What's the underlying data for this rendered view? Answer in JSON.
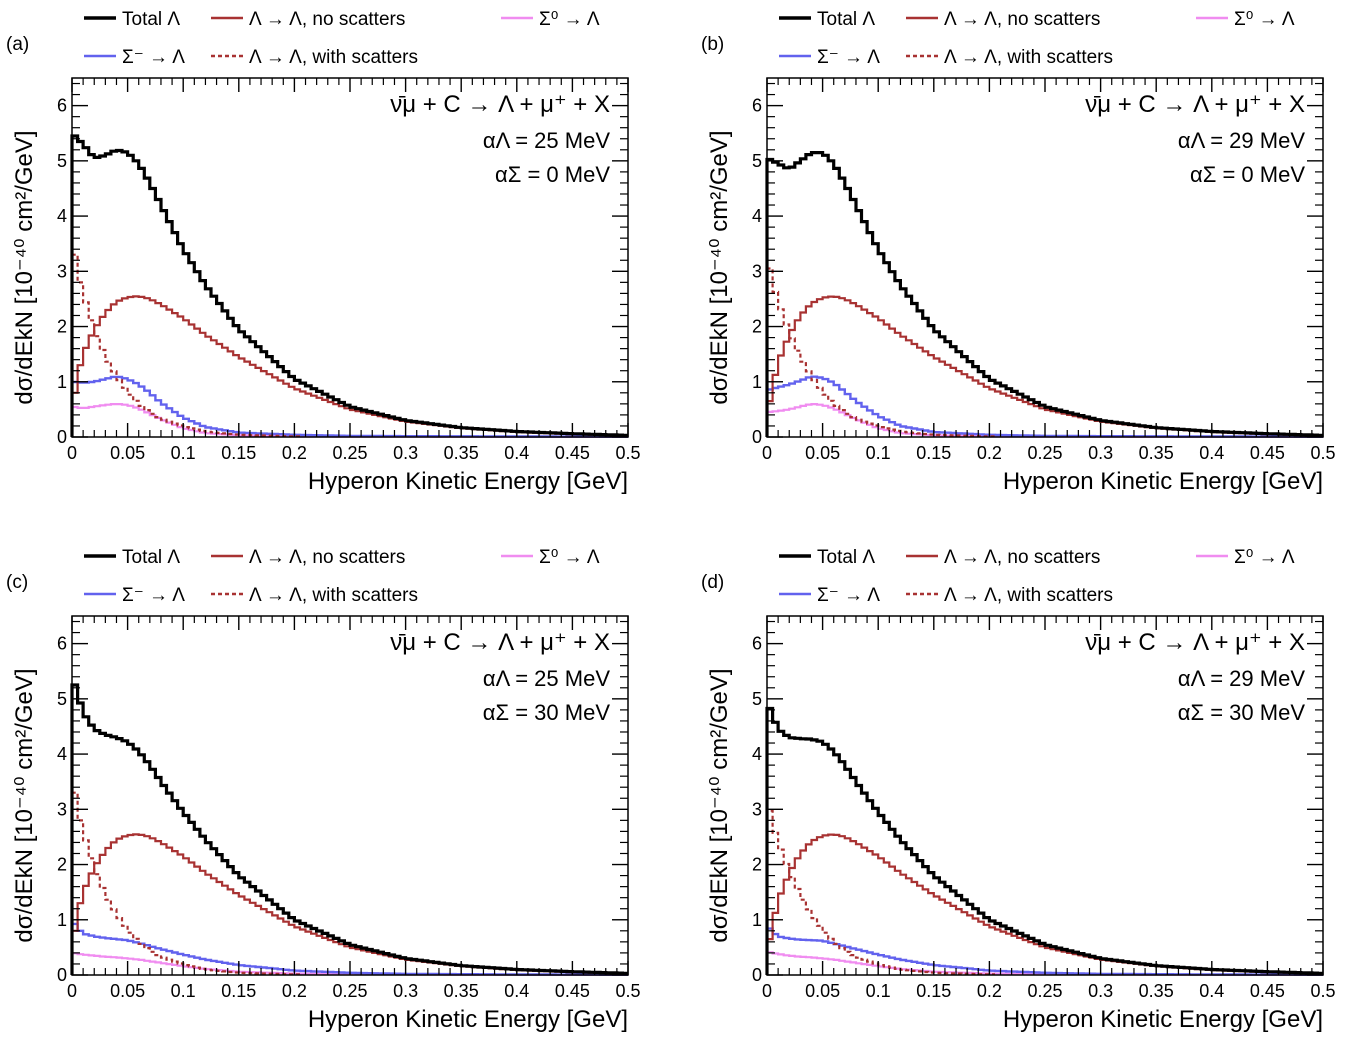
{
  "colors": {
    "total": "#000000",
    "lam_no": "#a83232",
    "lam_with": "#a83232",
    "sigma_minus": "#6262ee",
    "sigma0": "#f08cf0"
  },
  "legend": {
    "total": "Total Λ",
    "lam_no": "Λ → Λ, no scatters",
    "sigma0": "Σ⁰ → Λ",
    "sigma_minus": "Σ⁻ → Λ",
    "lam_with": "Λ → Λ, with scatters"
  },
  "chart_data": [
    {
      "type": "line",
      "panel": "(a)",
      "title": "ν̄μ + C → Λ + μ⁺ + X",
      "annotations": [
        "αΛ = 25 MeV",
        "αΣ = 0 MeV"
      ],
      "xlabel": "Hyperon Kinetic Energy   [GeV]",
      "ylabel": "dσ/dEkN   [10⁻⁴⁰ cm²/GeV]",
      "xlim": [
        0,
        0.5
      ],
      "ylim": [
        0,
        6.5
      ],
      "xticks": [
        "0",
        "0.05",
        "0.1",
        "0.15",
        "0.2",
        "0.25",
        "0.3",
        "0.35",
        "0.4",
        "0.45",
        "0.5"
      ],
      "yticks": [
        "0",
        "1",
        "2",
        "3",
        "4",
        "5",
        "6"
      ],
      "legend_position": "top",
      "series": [
        {
          "key": "total",
          "name": "Total Λ",
          "x": [
            0,
            0.01,
            0.02,
            0.03,
            0.04,
            0.05,
            0.06,
            0.07,
            0.08,
            0.09,
            0.1,
            0.12,
            0.15,
            0.2,
            0.25,
            0.3,
            0.35,
            0.4,
            0.45,
            0.5
          ],
          "y": [
            5.5,
            5.3,
            5.05,
            5.1,
            5.2,
            5.15,
            4.95,
            4.6,
            4.2,
            3.8,
            3.4,
            2.75,
            1.95,
            1.05,
            0.55,
            0.3,
            0.17,
            0.1,
            0.06,
            0.03
          ]
        },
        {
          "key": "lam_no",
          "name": "Λ → Λ, no scatters",
          "x": [
            0,
            0.005,
            0.01,
            0.02,
            0.03,
            0.04,
            0.05,
            0.06,
            0.07,
            0.08,
            0.1,
            0.12,
            0.15,
            0.2,
            0.25,
            0.3,
            0.35,
            0.4,
            0.45,
            0.5
          ],
          "y": [
            0.5,
            1.1,
            1.5,
            1.95,
            2.25,
            2.45,
            2.53,
            2.55,
            2.5,
            2.4,
            2.15,
            1.85,
            1.45,
            0.88,
            0.5,
            0.28,
            0.16,
            0.09,
            0.05,
            0.03
          ]
        },
        {
          "key": "lam_with",
          "name": "Λ → Λ, with scatters",
          "x": [
            0,
            0.005,
            0.01,
            0.02,
            0.03,
            0.04,
            0.05,
            0.06,
            0.07,
            0.08,
            0.1,
            0.12,
            0.15,
            0.2
          ],
          "y": [
            3.6,
            3.0,
            2.6,
            1.95,
            1.45,
            1.1,
            0.82,
            0.6,
            0.45,
            0.33,
            0.19,
            0.1,
            0.04,
            0.01
          ]
        },
        {
          "key": "sigma_minus",
          "name": "Σ⁻ → Λ",
          "x": [
            0,
            0.01,
            0.02,
            0.03,
            0.04,
            0.05,
            0.06,
            0.07,
            0.08,
            0.1,
            0.12,
            0.15,
            0.2,
            0.25,
            0.3,
            0.4,
            0.5
          ],
          "y": [
            1.0,
            0.98,
            1.0,
            1.05,
            1.1,
            1.05,
            0.95,
            0.8,
            0.62,
            0.35,
            0.18,
            0.08,
            0.04,
            0.02,
            0.015,
            0.01,
            0.005
          ]
        },
        {
          "key": "sigma0",
          "name": "Σ⁰ → Λ",
          "x": [
            0,
            0.01,
            0.02,
            0.03,
            0.04,
            0.05,
            0.06,
            0.07,
            0.08,
            0.1,
            0.12,
            0.15,
            0.2,
            0.3,
            0.4,
            0.5
          ],
          "y": [
            0.55,
            0.52,
            0.55,
            0.58,
            0.6,
            0.58,
            0.52,
            0.42,
            0.32,
            0.16,
            0.07,
            0.03,
            0.01,
            0.005,
            0.003,
            0.002
          ]
        }
      ]
    },
    {
      "type": "line",
      "panel": "(b)",
      "title": "ν̄μ + C → Λ + μ⁺ + X",
      "annotations": [
        "αΛ = 29 MeV",
        "αΣ = 0 MeV"
      ],
      "xlabel": "Hyperon Kinetic Energy   [GeV]",
      "ylabel": "dσ/dEkN   [10⁻⁴⁰ cm²/GeV]",
      "xlim": [
        0,
        0.5
      ],
      "ylim": [
        0,
        6.5
      ],
      "xticks": [
        "0",
        "0.05",
        "0.1",
        "0.15",
        "0.2",
        "0.25",
        "0.3",
        "0.35",
        "0.4",
        "0.45",
        "0.5"
      ],
      "yticks": [
        "0",
        "1",
        "2",
        "3",
        "4",
        "5",
        "6"
      ],
      "legend_position": "top",
      "series": [
        {
          "key": "total",
          "name": "Total Λ",
          "x": [
            0,
            0.01,
            0.02,
            0.03,
            0.04,
            0.05,
            0.06,
            0.07,
            0.08,
            0.09,
            0.1,
            0.12,
            0.15,
            0.2,
            0.25,
            0.3,
            0.35,
            0.4,
            0.45,
            0.5
          ],
          "y": [
            5.05,
            4.95,
            4.85,
            5.0,
            5.15,
            5.15,
            4.95,
            4.6,
            4.2,
            3.8,
            3.4,
            2.75,
            1.95,
            1.05,
            0.55,
            0.3,
            0.17,
            0.1,
            0.06,
            0.03
          ]
        },
        {
          "key": "lam_no",
          "name": "Λ → Λ, no scatters",
          "x": [
            0,
            0.005,
            0.01,
            0.02,
            0.03,
            0.04,
            0.05,
            0.06,
            0.07,
            0.08,
            0.1,
            0.12,
            0.15,
            0.2,
            0.25,
            0.3,
            0.35,
            0.4,
            0.45,
            0.5
          ],
          "y": [
            0.4,
            0.9,
            1.35,
            1.85,
            2.2,
            2.42,
            2.52,
            2.55,
            2.5,
            2.4,
            2.15,
            1.85,
            1.45,
            0.88,
            0.5,
            0.28,
            0.16,
            0.09,
            0.05,
            0.03
          ]
        },
        {
          "key": "lam_with",
          "name": "Λ → Λ, with scatters",
          "x": [
            0,
            0.005,
            0.01,
            0.02,
            0.03,
            0.04,
            0.05,
            0.06,
            0.07,
            0.08,
            0.1,
            0.12,
            0.15,
            0.2
          ],
          "y": [
            3.3,
            2.8,
            2.45,
            1.9,
            1.45,
            1.1,
            0.82,
            0.6,
            0.45,
            0.33,
            0.19,
            0.1,
            0.04,
            0.01
          ]
        },
        {
          "key": "sigma_minus",
          "name": "Σ⁻ → Λ",
          "x": [
            0,
            0.01,
            0.02,
            0.03,
            0.04,
            0.05,
            0.06,
            0.07,
            0.08,
            0.1,
            0.12,
            0.15,
            0.2,
            0.25,
            0.3,
            0.4,
            0.5
          ],
          "y": [
            0.85,
            0.9,
            0.95,
            1.02,
            1.1,
            1.07,
            0.98,
            0.82,
            0.65,
            0.38,
            0.2,
            0.09,
            0.04,
            0.02,
            0.015,
            0.01,
            0.005
          ]
        },
        {
          "key": "sigma0",
          "name": "Σ⁰ → Λ",
          "x": [
            0,
            0.01,
            0.02,
            0.03,
            0.04,
            0.05,
            0.06,
            0.07,
            0.08,
            0.1,
            0.12,
            0.15,
            0.2,
            0.3,
            0.4,
            0.5
          ],
          "y": [
            0.45,
            0.47,
            0.5,
            0.55,
            0.6,
            0.58,
            0.52,
            0.42,
            0.32,
            0.16,
            0.07,
            0.03,
            0.01,
            0.005,
            0.003,
            0.002
          ]
        }
      ]
    },
    {
      "type": "line",
      "panel": "(c)",
      "title": "ν̄μ + C → Λ + μ⁺ + X",
      "annotations": [
        "αΛ = 25 MeV",
        "αΣ = 30 MeV"
      ],
      "xlabel": "Hyperon Kinetic Energy   [GeV]",
      "ylabel": "dσ/dEkN   [10⁻⁴⁰ cm²/GeV]",
      "xlim": [
        0,
        0.5
      ],
      "ylim": [
        0,
        6.5
      ],
      "xticks": [
        "0",
        "0.05",
        "0.1",
        "0.15",
        "0.2",
        "0.25",
        "0.3",
        "0.35",
        "0.4",
        "0.45",
        "0.5"
      ],
      "yticks": [
        "0",
        "1",
        "2",
        "3",
        "4",
        "5",
        "6"
      ],
      "legend_position": "top",
      "series": [
        {
          "key": "total",
          "name": "Total Λ",
          "x": [
            0,
            0.005,
            0.01,
            0.02,
            0.03,
            0.04,
            0.05,
            0.06,
            0.07,
            0.08,
            0.1,
            0.12,
            0.15,
            0.2,
            0.25,
            0.3,
            0.35,
            0.4,
            0.45,
            0.5
          ],
          "y": [
            5.4,
            5.1,
            4.75,
            4.45,
            4.35,
            4.3,
            4.22,
            4.05,
            3.8,
            3.5,
            2.95,
            2.45,
            1.8,
            1.0,
            0.55,
            0.3,
            0.17,
            0.1,
            0.06,
            0.03
          ]
        },
        {
          "key": "lam_no",
          "name": "Λ → Λ, no scatters",
          "x": [
            0,
            0.005,
            0.01,
            0.02,
            0.03,
            0.04,
            0.05,
            0.06,
            0.07,
            0.08,
            0.1,
            0.12,
            0.15,
            0.2,
            0.25,
            0.3,
            0.35,
            0.4,
            0.45,
            0.5
          ],
          "y": [
            0.5,
            1.1,
            1.5,
            1.95,
            2.25,
            2.45,
            2.53,
            2.55,
            2.5,
            2.4,
            2.15,
            1.85,
            1.45,
            0.88,
            0.5,
            0.28,
            0.16,
            0.09,
            0.05,
            0.03
          ]
        },
        {
          "key": "lam_with",
          "name": "Λ → Λ, with scatters",
          "x": [
            0,
            0.005,
            0.01,
            0.02,
            0.03,
            0.04,
            0.05,
            0.06,
            0.07,
            0.08,
            0.1,
            0.12,
            0.15,
            0.2
          ],
          "y": [
            3.6,
            3.0,
            2.6,
            1.95,
            1.45,
            1.1,
            0.82,
            0.6,
            0.45,
            0.33,
            0.19,
            0.1,
            0.04,
            0.01
          ]
        },
        {
          "key": "sigma_minus",
          "name": "Σ⁻ → Λ",
          "x": [
            0,
            0.005,
            0.01,
            0.02,
            0.03,
            0.04,
            0.05,
            0.06,
            0.08,
            0.1,
            0.12,
            0.15,
            0.2,
            0.25,
            0.3,
            0.4,
            0.5
          ],
          "y": [
            1.0,
            0.85,
            0.75,
            0.7,
            0.67,
            0.65,
            0.63,
            0.58,
            0.47,
            0.37,
            0.28,
            0.18,
            0.08,
            0.04,
            0.02,
            0.01,
            0.005
          ]
        },
        {
          "key": "sigma0",
          "name": "Σ⁰ → Λ",
          "x": [
            0,
            0.01,
            0.02,
            0.03,
            0.04,
            0.05,
            0.06,
            0.08,
            0.1,
            0.12,
            0.15,
            0.2,
            0.3,
            0.4,
            0.5
          ],
          "y": [
            0.4,
            0.37,
            0.35,
            0.33,
            0.32,
            0.3,
            0.28,
            0.22,
            0.16,
            0.11,
            0.06,
            0.025,
            0.01,
            0.005,
            0.002
          ]
        }
      ]
    },
    {
      "type": "line",
      "panel": "(d)",
      "title": "ν̄μ + C → Λ + μ⁺ + X",
      "annotations": [
        "αΛ = 29 MeV",
        "αΣ = 30 MeV"
      ],
      "xlabel": "Hyperon Kinetic Energy   [GeV]",
      "ylabel": "dσ/dEkN   [10⁻⁴⁰ cm²/GeV]",
      "xlim": [
        0,
        0.5
      ],
      "ylim": [
        0,
        6.5
      ],
      "xticks": [
        "0",
        "0.05",
        "0.1",
        "0.15",
        "0.2",
        "0.25",
        "0.3",
        "0.35",
        "0.4",
        "0.45",
        "0.5"
      ],
      "yticks": [
        "0",
        "1",
        "2",
        "3",
        "4",
        "5",
        "6"
      ],
      "legend_position": "top",
      "series": [
        {
          "key": "total",
          "name": "Total Λ",
          "x": [
            0,
            0.005,
            0.01,
            0.02,
            0.03,
            0.04,
            0.05,
            0.06,
            0.07,
            0.08,
            0.1,
            0.12,
            0.15,
            0.2,
            0.25,
            0.3,
            0.35,
            0.4,
            0.45,
            0.5
          ],
          "y": [
            4.95,
            4.7,
            4.45,
            4.3,
            4.28,
            4.27,
            4.22,
            4.05,
            3.8,
            3.5,
            2.95,
            2.45,
            1.8,
            1.0,
            0.55,
            0.3,
            0.17,
            0.1,
            0.06,
            0.03
          ]
        },
        {
          "key": "lam_no",
          "name": "Λ → Λ, no scatters",
          "x": [
            0,
            0.005,
            0.01,
            0.02,
            0.03,
            0.04,
            0.05,
            0.06,
            0.07,
            0.08,
            0.1,
            0.12,
            0.15,
            0.2,
            0.25,
            0.3,
            0.35,
            0.4,
            0.45,
            0.5
          ],
          "y": [
            0.4,
            0.9,
            1.35,
            1.85,
            2.2,
            2.42,
            2.52,
            2.55,
            2.5,
            2.4,
            2.15,
            1.85,
            1.45,
            0.88,
            0.5,
            0.28,
            0.16,
            0.09,
            0.05,
            0.03
          ]
        },
        {
          "key": "lam_with",
          "name": "Λ → Λ, with scatters",
          "x": [
            0,
            0.005,
            0.01,
            0.02,
            0.03,
            0.04,
            0.05,
            0.06,
            0.07,
            0.08,
            0.1,
            0.12,
            0.15,
            0.2
          ],
          "y": [
            3.2,
            2.75,
            2.4,
            1.88,
            1.45,
            1.1,
            0.82,
            0.6,
            0.45,
            0.33,
            0.19,
            0.1,
            0.04,
            0.01
          ]
        },
        {
          "key": "sigma_minus",
          "name": "Σ⁻ → Λ",
          "x": [
            0,
            0.005,
            0.01,
            0.02,
            0.03,
            0.04,
            0.05,
            0.06,
            0.08,
            0.1,
            0.12,
            0.15,
            0.2,
            0.25,
            0.3,
            0.4,
            0.5
          ],
          "y": [
            0.9,
            0.78,
            0.7,
            0.66,
            0.64,
            0.63,
            0.62,
            0.57,
            0.47,
            0.37,
            0.28,
            0.18,
            0.08,
            0.04,
            0.02,
            0.01,
            0.005
          ]
        },
        {
          "key": "sigma0",
          "name": "Σ⁰ → Λ",
          "x": [
            0,
            0.01,
            0.02,
            0.03,
            0.04,
            0.05,
            0.06,
            0.08,
            0.1,
            0.12,
            0.15,
            0.2,
            0.3,
            0.4,
            0.5
          ],
          "y": [
            0.42,
            0.38,
            0.35,
            0.33,
            0.32,
            0.3,
            0.28,
            0.22,
            0.16,
            0.11,
            0.06,
            0.025,
            0.01,
            0.005,
            0.002
          ]
        }
      ]
    }
  ]
}
